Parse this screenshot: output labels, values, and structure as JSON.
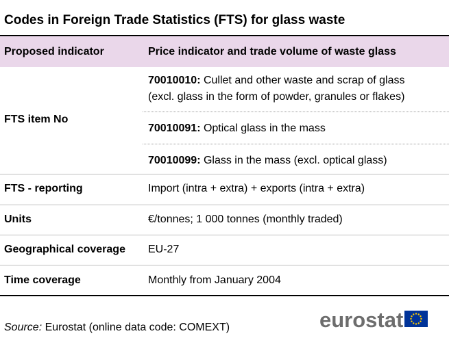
{
  "title": "Codes in Foreign Trade Statistics (FTS) for glass waste",
  "header": {
    "col1": "Proposed indicator",
    "col2": "Price indicator and trade volume of waste glass"
  },
  "rows": {
    "fts_item": {
      "label": "FTS item No",
      "items": [
        {
          "code": "70010010:",
          "text_line1": " Cullet and other waste and scrap of glass",
          "text_line2": "(excl. glass in the form of powder, granules or flakes)"
        },
        {
          "code": "70010091:",
          "text_line1": " Optical glass in the mass"
        },
        {
          "code": "70010099:",
          "text_line1": " Glass in the mass (excl. optical glass)"
        }
      ]
    },
    "fts_reporting": {
      "label": "FTS - reporting",
      "value": "Import (intra + extra) + exports (intra + extra)"
    },
    "units": {
      "label": "Units",
      "value": "€/tonnes; 1 000 tonnes (monthly traded)"
    },
    "geo": {
      "label": "Geographical coverage",
      "value": "EU-27"
    },
    "time": {
      "label": "Time coverage",
      "value": "Monthly from January 2004"
    }
  },
  "source": {
    "prefix": "Source:",
    "text": " Eurostat (online data code: COMEXT)"
  },
  "logo": {
    "text": "eurostat",
    "flag_icon": "eu-flag-icon"
  },
  "colors": {
    "header_band": "#ead7ea",
    "logo_text": "#6d6d6d",
    "flag_blue": "#003399",
    "flag_stars": "#ffcc00"
  }
}
